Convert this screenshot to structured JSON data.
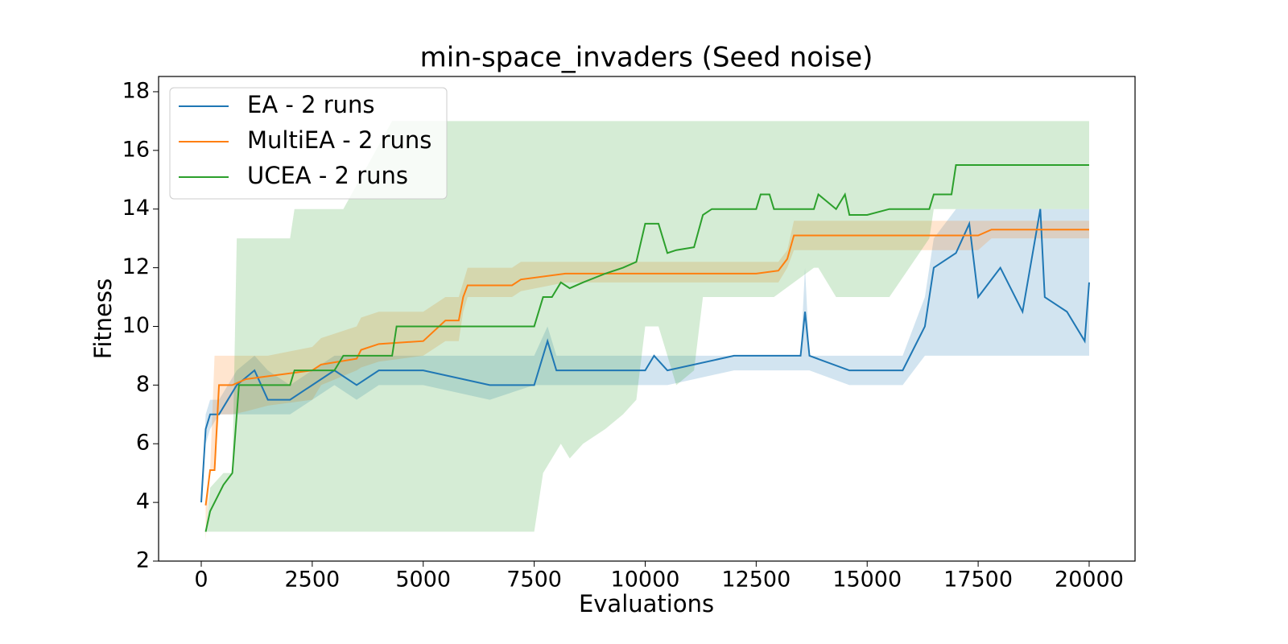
{
  "chart_data": {
    "type": "line",
    "title": "min-space_invaders (Seed noise)",
    "x_label": "Evaluations",
    "y_label": "Fitness",
    "xlim": [
      -961,
      21034
    ],
    "ylim": [
      2,
      18.52
    ],
    "xticks": [
      0,
      2500,
      5000,
      7500,
      10000,
      12500,
      15000,
      17500,
      20000
    ],
    "yticks": [
      2,
      4,
      6,
      8,
      10,
      12,
      14,
      16,
      18
    ],
    "legend": "upper left",
    "band_opacity": 0.2,
    "series": [
      {
        "name": "EA - 2 runs",
        "color": "#1f77b4",
        "x": [
          0,
          100,
          200,
          400,
          600,
          800,
          1200,
          1500,
          2000,
          2500,
          3000,
          3500,
          4000,
          5000,
          6500,
          7500,
          7800,
          8000,
          10000,
          10200,
          10500,
          12000,
          13500,
          13600,
          13700,
          14600,
          15800,
          16300,
          16500,
          17000,
          17300,
          17500,
          18000,
          18500,
          18900,
          19000,
          19500,
          19900,
          20000
        ],
        "values": [
          4,
          6.5,
          7,
          7,
          7.5,
          8,
          8.5,
          7.5,
          7.5,
          8,
          8.5,
          8,
          8.5,
          8.5,
          8,
          8,
          9.5,
          8.5,
          8.5,
          9,
          8.5,
          9,
          9,
          10.5,
          9,
          8.5,
          8.5,
          10,
          12,
          12.5,
          13.5,
          11,
          12,
          10.5,
          14,
          11,
          10.5,
          9.5,
          11.5
        ],
        "lower": [
          4,
          6,
          6.5,
          7,
          7,
          7,
          7,
          7,
          7,
          7.5,
          8,
          7.5,
          8,
          8,
          7.5,
          8,
          8,
          8,
          8,
          8,
          8,
          8.5,
          8.5,
          8.5,
          8.5,
          8,
          8,
          9,
          9,
          9,
          9,
          9,
          9,
          9,
          9,
          9,
          9,
          9,
          9
        ],
        "upper": [
          4,
          7,
          7.5,
          7.5,
          8,
          8.5,
          9,
          8.5,
          8,
          8.5,
          9,
          9,
          9,
          9,
          9,
          9,
          10,
          9,
          9,
          9,
          9,
          9,
          9,
          12,
          9,
          9,
          9,
          11,
          13,
          14,
          14,
          14,
          14,
          14,
          14,
          14,
          14,
          14,
          14
        ]
      },
      {
        "name": "MultiEA - 2 runs",
        "color": "#ff7f0e",
        "x": [
          100,
          200,
          300,
          400,
          700,
          1000,
          1500,
          2500,
          2700,
          3500,
          3600,
          4000,
          5000,
          5500,
          5800,
          5900,
          6000,
          7000,
          7200,
          8200,
          12500,
          13000,
          13200,
          13350,
          17500,
          17800,
          20000
        ],
        "values": [
          3.9,
          5.1,
          5.1,
          8,
          8,
          8.2,
          8.3,
          8.5,
          8.7,
          8.9,
          9.2,
          9.4,
          9.5,
          10.2,
          10.2,
          11,
          11.4,
          11.4,
          11.6,
          11.8,
          11.8,
          11.9,
          12.3,
          13.1,
          13.1,
          13.3,
          13.3
        ],
        "lower": [
          2.7,
          5.1,
          5.1,
          7,
          7,
          7.1,
          7.3,
          7.5,
          8,
          8.5,
          8.6,
          8.8,
          9,
          9.5,
          9.5,
          10.5,
          11,
          11,
          11.2,
          11.5,
          11.5,
          11.5,
          12,
          12.6,
          12.6,
          13,
          13
        ],
        "upper": [
          4,
          5.1,
          9,
          9,
          9,
          9,
          9,
          9.3,
          9.6,
          10,
          10.3,
          10.5,
          10.5,
          11,
          11,
          11.5,
          12,
          12,
          12.2,
          12.2,
          12.2,
          12.2,
          12.6,
          13.6,
          13.6,
          13.6,
          13.6
        ]
      },
      {
        "name": "UCEA - 2 runs",
        "color": "#2ca02c",
        "x": [
          100,
          200,
          500,
          700,
          800,
          850,
          2000,
          2100,
          3000,
          3200,
          4300,
          4400,
          7500,
          7700,
          7900,
          8100,
          8300,
          8600,
          9100,
          9500,
          9800,
          10000,
          10300,
          10500,
          10700,
          11100,
          11300,
          11500,
          12500,
          12600,
          12800,
          12900,
          13800,
          13900,
          14300,
          14500,
          14600,
          15000,
          15500,
          16400,
          16500,
          16900,
          17000,
          20000
        ],
        "values": [
          3,
          3.7,
          4.6,
          5,
          7,
          8,
          8,
          8.5,
          8.5,
          9,
          9,
          10,
          10,
          11,
          11,
          11.5,
          11.3,
          11.5,
          11.8,
          12,
          12.2,
          13.5,
          13.5,
          12.5,
          12.6,
          12.7,
          13.8,
          14,
          14,
          14.5,
          14.5,
          14,
          14,
          14.5,
          14,
          14.5,
          13.8,
          13.8,
          14,
          14,
          14.5,
          14.5,
          15.5,
          15.5
        ],
        "lower": [
          3,
          3,
          3,
          3,
          3,
          3,
          3,
          3,
          3,
          3,
          3,
          3,
          3,
          5,
          5.5,
          6,
          5.5,
          6,
          6.5,
          7,
          7.5,
          10,
          10,
          9,
          8,
          8.5,
          11,
          11,
          11,
          11,
          11,
          11,
          12,
          12,
          11,
          11,
          11,
          11,
          11,
          13,
          14,
          14,
          14,
          14
        ],
        "upper": [
          3,
          4.5,
          5,
          5,
          13,
          13,
          13,
          14,
          14,
          14,
          17,
          17,
          17,
          17,
          17,
          17,
          17,
          17,
          17,
          17,
          17,
          17,
          17,
          17,
          17,
          17,
          17,
          17,
          17,
          17,
          17,
          17,
          17,
          17,
          17,
          17,
          17,
          17,
          17,
          17,
          17,
          17,
          17,
          17
        ]
      }
    ]
  }
}
